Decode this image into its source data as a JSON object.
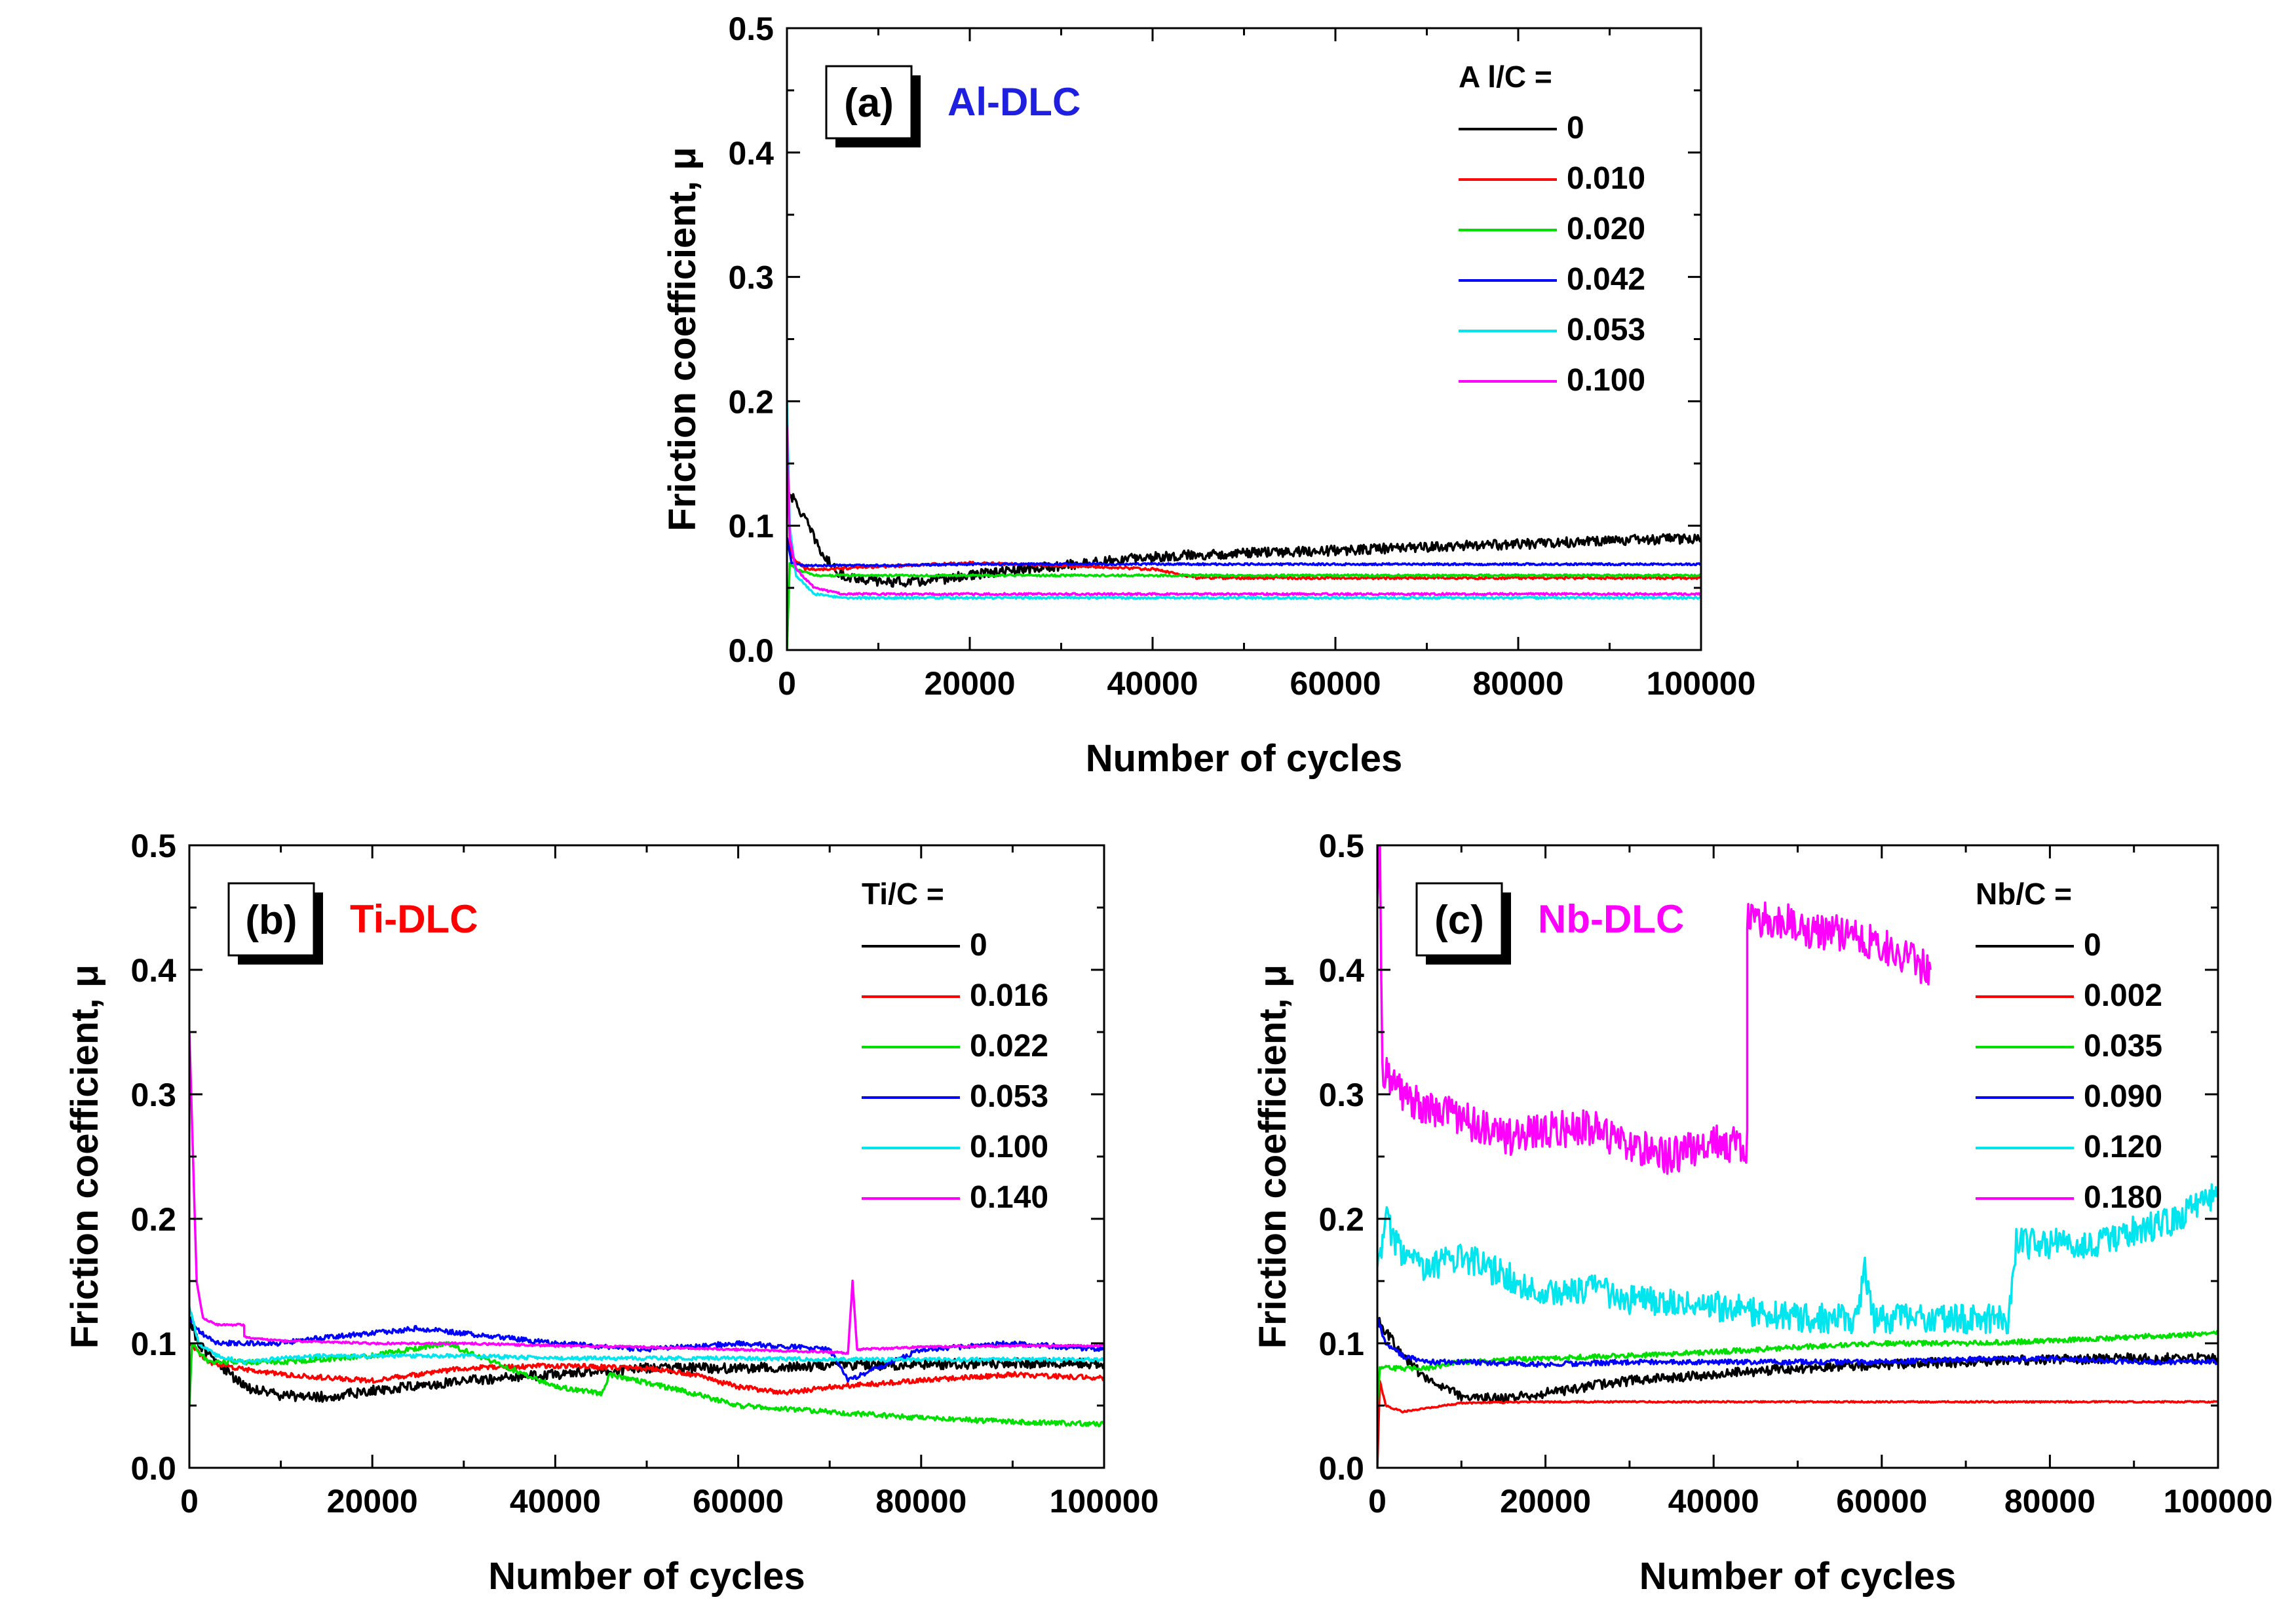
{
  "chart_data": [
    {
      "panel_label": "(a)",
      "material": "Al-DLC",
      "material_color": "#1f1fe0",
      "type": "line",
      "xlabel": "Number of cycles",
      "ylabel": "Friction coefficient, μ",
      "xlim": [
        0,
        100000
      ],
      "ylim": [
        0.0,
        0.5
      ],
      "xticks": [
        "0",
        "20000",
        "40000",
        "60000",
        "80000",
        "100000"
      ],
      "yticks": [
        "0.0",
        "0.1",
        "0.2",
        "0.3",
        "0.4",
        "0.5"
      ],
      "legend_title": "A l/C =",
      "legend_position": "top-right",
      "series": [
        {
          "name": "0",
          "color": "#000000",
          "noise": 0.004,
          "x": [
            0,
            800,
            2000,
            4000,
            6000,
            10000,
            15000,
            20000,
            30000,
            40000,
            50000,
            60000,
            70000,
            80000,
            90000,
            100000
          ],
          "y": [
            0.13,
            0.12,
            0.105,
            0.075,
            0.06,
            0.055,
            0.055,
            0.06,
            0.068,
            0.075,
            0.078,
            0.08,
            0.083,
            0.085,
            0.088,
            0.09
          ]
        },
        {
          "name": "0.010",
          "color": "#ff0000",
          "noise": 0.001,
          "x": [
            0,
            500,
            2000,
            5000,
            10000,
            20000,
            30000,
            40000,
            45000,
            50000,
            60000,
            70000,
            80000,
            90000,
            100000
          ],
          "y": [
            0.09,
            0.075,
            0.065,
            0.065,
            0.067,
            0.07,
            0.068,
            0.065,
            0.058,
            0.058,
            0.058,
            0.058,
            0.058,
            0.058,
            0.058
          ]
        },
        {
          "name": "0.020",
          "color": "#00e000",
          "noise": 0.0008,
          "x": [
            0,
            300,
            1000,
            3000,
            10000,
            20000,
            40000,
            60000,
            80000,
            100000
          ],
          "y": [
            0.0,
            0.07,
            0.065,
            0.06,
            0.06,
            0.06,
            0.06,
            0.06,
            0.06,
            0.06
          ]
        },
        {
          "name": "0.042",
          "color": "#0000ff",
          "noise": 0.0008,
          "x": [
            0,
            500,
            2000,
            5000,
            10000,
            20000,
            40000,
            60000,
            80000,
            100000
          ],
          "y": [
            0.09,
            0.07,
            0.068,
            0.068,
            0.068,
            0.069,
            0.069,
            0.069,
            0.069,
            0.069
          ]
        },
        {
          "name": "0.053",
          "color": "#00e5ee",
          "noise": 0.0008,
          "x": [
            0,
            300,
            1000,
            3000,
            6000,
            10000,
            20000,
            40000,
            60000,
            80000,
            100000
          ],
          "y": [
            0.2,
            0.1,
            0.06,
            0.045,
            0.042,
            0.042,
            0.042,
            0.042,
            0.042,
            0.042,
            0.042
          ]
        },
        {
          "name": "0.100",
          "color": "#ff00ff",
          "noise": 0.0008,
          "x": [
            0,
            300,
            1000,
            3000,
            6000,
            10000,
            20000,
            40000,
            60000,
            80000,
            100000
          ],
          "y": [
            0.18,
            0.09,
            0.065,
            0.05,
            0.045,
            0.045,
            0.045,
            0.045,
            0.045,
            0.045,
            0.045
          ]
        }
      ]
    },
    {
      "panel_label": "(b)",
      "material": "Ti-DLC",
      "material_color": "#ff0000",
      "type": "line",
      "xlabel": "Number of cycles",
      "ylabel": "Friction coefficient, μ",
      "xlim": [
        0,
        100000
      ],
      "ylim": [
        0.0,
        0.5
      ],
      "xticks": [
        "0",
        "20000",
        "40000",
        "60000",
        "80000",
        "100000"
      ],
      "yticks": [
        "0.0",
        "0.1",
        "0.2",
        "0.3",
        "0.4",
        "0.5"
      ],
      "legend_title": "Ti/C =",
      "legend_position": "top-right",
      "series": [
        {
          "name": "0",
          "color": "#000000",
          "noise": 0.004,
          "x": [
            0,
            1000,
            3000,
            6000,
            10000,
            15000,
            20000,
            30000,
            40000,
            50000,
            60000,
            70000,
            80000,
            90000,
            100000
          ],
          "y": [
            0.12,
            0.1,
            0.085,
            0.065,
            0.058,
            0.057,
            0.062,
            0.07,
            0.075,
            0.08,
            0.08,
            0.082,
            0.083,
            0.084,
            0.084
          ]
        },
        {
          "name": "0.016",
          "color": "#ff0000",
          "noise": 0.002,
          "x": [
            0,
            2000,
            5000,
            10000,
            20000,
            30000,
            40000,
            50000,
            55000,
            60000,
            65000,
            70000,
            80000,
            90000,
            100000
          ],
          "y": [
            0.1,
            0.085,
            0.08,
            0.075,
            0.07,
            0.08,
            0.082,
            0.08,
            0.075,
            0.065,
            0.06,
            0.065,
            0.07,
            0.075,
            0.072
          ]
        },
        {
          "name": "0.022",
          "color": "#00e000",
          "noise": 0.002,
          "x": [
            0,
            300,
            2000,
            10000,
            20000,
            28000,
            35000,
            40000,
            45000,
            46000,
            55000,
            60000,
            70000,
            80000,
            90000,
            100000
          ],
          "y": [
            0.05,
            0.1,
            0.085,
            0.085,
            0.09,
            0.1,
            0.08,
            0.065,
            0.06,
            0.075,
            0.06,
            0.05,
            0.045,
            0.04,
            0.037,
            0.035
          ]
        },
        {
          "name": "0.053",
          "color": "#0000ff",
          "noise": 0.002,
          "x": [
            0,
            1000,
            3000,
            6000,
            10000,
            15000,
            20000,
            25000,
            30000,
            40000,
            50000,
            60000,
            70000,
            72000,
            80000,
            90000,
            100000
          ],
          "y": [
            0.12,
            0.11,
            0.1,
            0.1,
            0.1,
            0.105,
            0.108,
            0.112,
            0.108,
            0.1,
            0.095,
            0.1,
            0.095,
            0.07,
            0.095,
            0.1,
            0.095
          ]
        },
        {
          "name": "0.100",
          "color": "#00e5ee",
          "noise": 0.0015,
          "x": [
            0,
            1000,
            3000,
            6000,
            10000,
            15000,
            20000,
            30000,
            40000,
            50000,
            60000,
            70000,
            80000,
            90000,
            100000
          ],
          "y": [
            0.13,
            0.1,
            0.09,
            0.085,
            0.088,
            0.09,
            0.09,
            0.09,
            0.088,
            0.088,
            0.088,
            0.087,
            0.087,
            0.087,
            0.087
          ]
        },
        {
          "name": "0.140",
          "color": "#ff00ff",
          "noise": 0.0008,
          "x": [
            0,
            400,
            800,
            1500,
            3000,
            5999,
            6000,
            10000,
            20000,
            30000,
            40000,
            50000,
            60000,
            70000,
            72000,
            72500,
            73000,
            80000,
            90000,
            100000
          ],
          "y": [
            0.35,
            0.25,
            0.15,
            0.12,
            0.115,
            0.115,
            0.105,
            0.102,
            0.1,
            0.1,
            0.098,
            0.097,
            0.095,
            0.093,
            0.092,
            0.15,
            0.095,
            0.097,
            0.098,
            0.098
          ]
        }
      ]
    },
    {
      "panel_label": "(c)",
      "material": "Nb-DLC",
      "material_color": "#ff00ff",
      "type": "line",
      "xlabel": "Number of cycles",
      "ylabel": "Friction coefficient, μ",
      "xlim": [
        0,
        100000
      ],
      "ylim": [
        0.0,
        0.5
      ],
      "xticks": [
        "0",
        "20000",
        "40000",
        "60000",
        "80000",
        "100000"
      ],
      "yticks": [
        "0.0",
        "0.1",
        "0.2",
        "0.3",
        "0.4",
        "0.5"
      ],
      "legend_title": "Nb/C =",
      "legend_position": "top-right",
      "series": [
        {
          "name": "0",
          "color": "#000000",
          "noise": 0.004,
          "x": [
            0,
            1000,
            3000,
            6000,
            10000,
            15000,
            20000,
            30000,
            40000,
            50000,
            60000,
            70000,
            80000,
            90000,
            100000
          ],
          "y": [
            0.12,
            0.11,
            0.09,
            0.07,
            0.058,
            0.055,
            0.06,
            0.07,
            0.075,
            0.08,
            0.083,
            0.085,
            0.087,
            0.088,
            0.088
          ]
        },
        {
          "name": "0.002",
          "color": "#ff0000",
          "noise": 0.0006,
          "x": [
            0,
            300,
            1000,
            3000,
            6000,
            10000,
            20000,
            40000,
            60000,
            80000,
            100000
          ],
          "y": [
            0.0,
            0.07,
            0.05,
            0.045,
            0.048,
            0.052,
            0.053,
            0.053,
            0.053,
            0.053,
            0.053
          ]
        },
        {
          "name": "0.035",
          "color": "#00e000",
          "noise": 0.002,
          "x": [
            0,
            300,
            2000,
            6000,
            10000,
            20000,
            30000,
            40000,
            50000,
            60000,
            70000,
            80000,
            90000,
            100000
          ],
          "y": [
            0.05,
            0.08,
            0.08,
            0.08,
            0.085,
            0.088,
            0.09,
            0.093,
            0.097,
            0.1,
            0.1,
            0.102,
            0.105,
            0.108
          ]
        },
        {
          "name": "0.090",
          "color": "#0000ff",
          "noise": 0.002,
          "x": [
            0,
            1000,
            3000,
            6000,
            10000,
            20000,
            30000,
            40000,
            50000,
            60000,
            70000,
            80000,
            90000,
            100000
          ],
          "y": [
            0.12,
            0.1,
            0.09,
            0.085,
            0.085,
            0.083,
            0.085,
            0.085,
            0.085,
            0.085,
            0.087,
            0.088,
            0.085,
            0.085
          ]
        },
        {
          "name": "0.120",
          "color": "#00e5ee",
          "noise": 0.012,
          "x": [
            0,
            1000,
            3000,
            6000,
            10000,
            15000,
            20000,
            25000,
            30000,
            40000,
            50000,
            57000,
            58000,
            59000,
            60000,
            70000,
            75000,
            76000,
            80000,
            85000,
            90000,
            95000,
            100000
          ],
          "y": [
            0.16,
            0.2,
            0.17,
            0.16,
            0.17,
            0.155,
            0.14,
            0.145,
            0.135,
            0.13,
            0.12,
            0.12,
            0.16,
            0.12,
            0.12,
            0.12,
            0.12,
            0.18,
            0.18,
            0.18,
            0.19,
            0.2,
            0.22
          ]
        },
        {
          "name": "0.180",
          "color": "#ff00ff",
          "noise": 0.015,
          "x": [
            0,
            300,
            600,
            1500,
            3000,
            6000,
            10000,
            15000,
            20000,
            25000,
            30000,
            35000,
            40000,
            43999,
            44000,
            48000,
            52000,
            56000,
            60000,
            63000,
            65800
          ],
          "y": [
            0.45,
            0.5,
            0.32,
            0.31,
            0.3,
            0.29,
            0.28,
            0.265,
            0.27,
            0.275,
            0.26,
            0.25,
            0.26,
            0.26,
            0.44,
            0.44,
            0.43,
            0.43,
            0.42,
            0.41,
            0.4
          ]
        }
      ]
    }
  ]
}
